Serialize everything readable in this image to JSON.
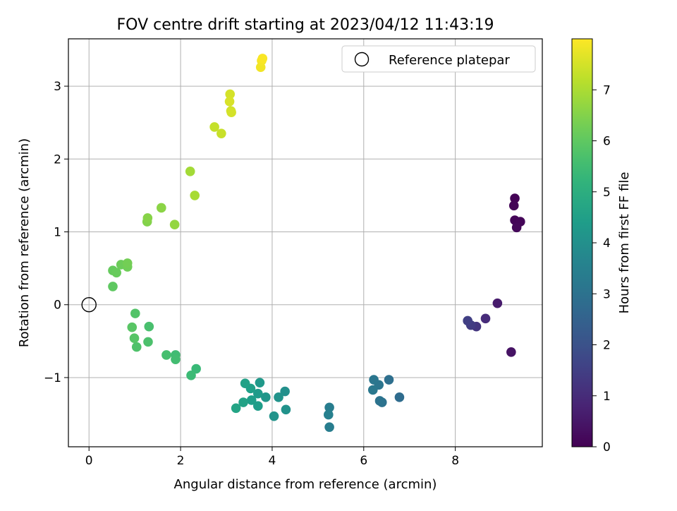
{
  "chart_data": {
    "type": "scatter",
    "title": "FOV centre drift starting at 2023/04/12 11:43:19",
    "xlabel": "Angular distance from reference (arcmin)",
    "ylabel": "Rotation from reference (arcmin)",
    "xlim": [
      -0.45,
      9.9
    ],
    "ylim": [
      -1.95,
      3.65
    ],
    "xticks": [
      0,
      2,
      4,
      6,
      8
    ],
    "xtick_labels": [
      "0",
      "2",
      "4",
      "6",
      "8"
    ],
    "yticks": [
      -1,
      0,
      1,
      2,
      3
    ],
    "ytick_labels": [
      "−1",
      "0",
      "1",
      "2",
      "3"
    ],
    "grid": true,
    "legend": {
      "location": "top-right",
      "entries": [
        {
          "label": "Reference platepar",
          "marker": "open-circle"
        }
      ]
    },
    "colormap": "viridis",
    "colorbar": {
      "label": "Hours from first FF file",
      "range": [
        0,
        8
      ],
      "ticks": [
        0,
        1,
        2,
        3,
        4,
        5,
        6,
        7
      ],
      "tick_labels": [
        "0",
        "1",
        "2",
        "3",
        "4",
        "5",
        "6",
        "7"
      ]
    },
    "reference_point": {
      "x": 0,
      "y": 0
    },
    "series": [
      {
        "color_by": "hours",
        "points": [
          {
            "x": 9.3,
            "y": 1.46,
            "c": 0.05
          },
          {
            "x": 9.28,
            "y": 1.36,
            "c": 0.08
          },
          {
            "x": 9.3,
            "y": 1.16,
            "c": 0.1
          },
          {
            "x": 9.42,
            "y": 1.14,
            "c": 0.12
          },
          {
            "x": 9.34,
            "y": 1.06,
            "c": 0.15
          },
          {
            "x": 8.92,
            "y": 0.02,
            "c": 0.6
          },
          {
            "x": 9.22,
            "y": -0.65,
            "c": 0.4
          },
          {
            "x": 8.66,
            "y": -0.19,
            "c": 1.0
          },
          {
            "x": 8.46,
            "y": -0.3,
            "c": 1.25
          },
          {
            "x": 8.34,
            "y": -0.28,
            "c": 1.4
          },
          {
            "x": 8.27,
            "y": -0.22,
            "c": 1.5
          },
          {
            "x": 6.78,
            "y": -1.27,
            "c": 2.8
          },
          {
            "x": 6.55,
            "y": -1.03,
            "c": 2.9
          },
          {
            "x": 6.4,
            "y": -1.34,
            "c": 3.0
          },
          {
            "x": 6.35,
            "y": -1.32,
            "c": 3.05
          },
          {
            "x": 6.33,
            "y": -1.1,
            "c": 3.1
          },
          {
            "x": 6.22,
            "y": -1.03,
            "c": 3.15
          },
          {
            "x": 6.2,
            "y": -1.17,
            "c": 3.2
          },
          {
            "x": 5.25,
            "y": -1.41,
            "c": 3.4
          },
          {
            "x": 5.23,
            "y": -1.51,
            "c": 3.5
          },
          {
            "x": 5.25,
            "y": -1.68,
            "c": 3.4
          },
          {
            "x": 4.28,
            "y": -1.19,
            "c": 4.0
          },
          {
            "x": 4.3,
            "y": -1.44,
            "c": 4.05
          },
          {
            "x": 4.14,
            "y": -1.27,
            "c": 4.1
          },
          {
            "x": 4.04,
            "y": -1.53,
            "c": 4.1
          },
          {
            "x": 3.86,
            "y": -1.27,
            "c": 4.2
          },
          {
            "x": 3.73,
            "y": -1.07,
            "c": 4.3
          },
          {
            "x": 3.69,
            "y": -1.22,
            "c": 4.35
          },
          {
            "x": 3.69,
            "y": -1.39,
            "c": 4.4
          },
          {
            "x": 3.55,
            "y": -1.31,
            "c": 4.45
          },
          {
            "x": 3.53,
            "y": -1.15,
            "c": 4.5
          },
          {
            "x": 3.41,
            "y": -1.08,
            "c": 4.55
          },
          {
            "x": 3.37,
            "y": -1.34,
            "c": 4.6
          },
          {
            "x": 3.21,
            "y": -1.42,
            "c": 4.65
          },
          {
            "x": 2.34,
            "y": -0.88,
            "c": 5.4
          },
          {
            "x": 2.23,
            "y": -0.97,
            "c": 5.45
          },
          {
            "x": 1.89,
            "y": -0.69,
            "c": 5.5
          },
          {
            "x": 1.89,
            "y": -0.75,
            "c": 5.55
          },
          {
            "x": 1.69,
            "y": -0.69,
            "c": 5.6
          },
          {
            "x": 1.31,
            "y": -0.3,
            "c": 5.65
          },
          {
            "x": 1.29,
            "y": -0.51,
            "c": 5.7
          },
          {
            "x": 1.04,
            "y": -0.58,
            "c": 5.75
          },
          {
            "x": 1.01,
            "y": -0.12,
            "c": 5.8
          },
          {
            "x": 0.99,
            "y": -0.46,
            "c": 5.85
          },
          {
            "x": 0.94,
            "y": -0.31,
            "c": 5.9
          },
          {
            "x": 0.52,
            "y": 0.25,
            "c": 6.0
          },
          {
            "x": 0.52,
            "y": 0.47,
            "c": 6.1
          },
          {
            "x": 0.6,
            "y": 0.44,
            "c": 6.15
          },
          {
            "x": 0.7,
            "y": 0.55,
            "c": 6.2
          },
          {
            "x": 0.84,
            "y": 0.52,
            "c": 6.25
          },
          {
            "x": 0.84,
            "y": 0.57,
            "c": 6.3
          },
          {
            "x": 1.27,
            "y": 1.14,
            "c": 6.5
          },
          {
            "x": 1.28,
            "y": 1.19,
            "c": 6.55
          },
          {
            "x": 1.58,
            "y": 1.33,
            "c": 6.6
          },
          {
            "x": 1.87,
            "y": 1.1,
            "c": 6.7
          },
          {
            "x": 2.21,
            "y": 1.83,
            "c": 6.9
          },
          {
            "x": 2.31,
            "y": 1.5,
            "c": 6.95
          },
          {
            "x": 2.74,
            "y": 2.44,
            "c": 7.3
          },
          {
            "x": 2.89,
            "y": 2.35,
            "c": 7.35
          },
          {
            "x": 3.08,
            "y": 2.89,
            "c": 7.5
          },
          {
            "x": 3.07,
            "y": 2.79,
            "c": 7.55
          },
          {
            "x": 3.1,
            "y": 2.66,
            "c": 7.45
          },
          {
            "x": 3.11,
            "y": 2.64,
            "c": 7.5
          },
          {
            "x": 3.75,
            "y": 3.26,
            "c": 7.85
          },
          {
            "x": 3.77,
            "y": 3.35,
            "c": 7.9
          },
          {
            "x": 3.79,
            "y": 3.38,
            "c": 7.95
          }
        ]
      }
    ]
  }
}
